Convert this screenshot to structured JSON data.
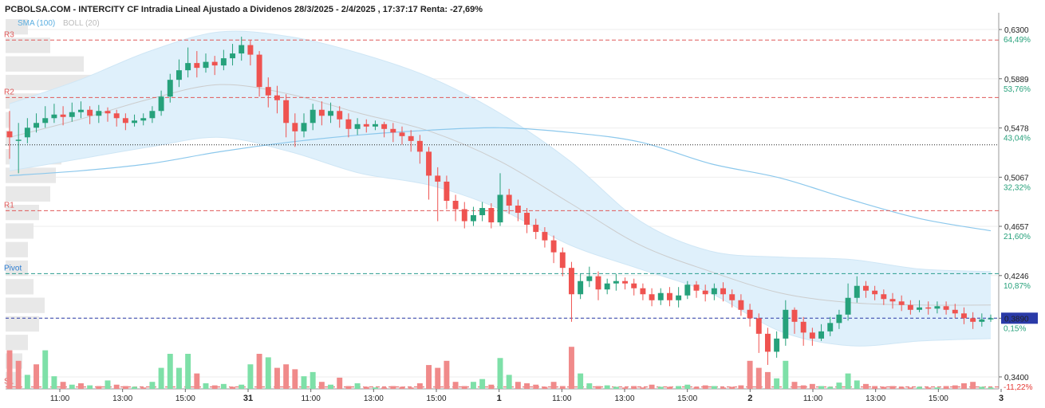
{
  "header": {
    "title": "PCBOLSA.COM - INTERCITY CF Intradia Lineal Ajustado a Dividenos 28/3/2025 - 2/4/2025 , 17:37:17 Renta: -27,69%",
    "legend_sma": "SMA (100)",
    "legend_boll": "BOLL (20)"
  },
  "colors": {
    "up": "#26a17b",
    "down": "#ef5350",
    "vol_up": "#7ee0a8",
    "vol_down": "#f08a8a",
    "band_fill": "#dff0fb",
    "sma": "#8cc8ec",
    "boll_mid": "#cccccc",
    "resistance": "#e05a5a",
    "pivot": "#2a9d8f",
    "support": "#e05a5a",
    "last_price": "#2a3aa8",
    "pct_positive": "#26a17b",
    "pct_negative": "#e53935",
    "sma_legend": "#5aaee0",
    "boll_legend": "#bbbbbb",
    "level_label": "#e05a5a",
    "pivot_label": "#2a7bd0"
  },
  "chart_data": {
    "type": "candlestick",
    "title": "PCBOLSA.COM - INTERCITY CF Intradia Lineal Ajustado a Dividenos 28/3/2025 - 2/4/2025 , 17:37:17 Renta: -27,69%",
    "ylim": [
      0.33,
      0.64
    ],
    "y_ticks": [
      {
        "value": 0.63,
        "label": "0,6300",
        "pct": "64,49%"
      },
      {
        "value": 0.5889,
        "label": "0,5889",
        "pct": "53,76%"
      },
      {
        "value": 0.5478,
        "label": "0,5478",
        "pct": "43,04%"
      },
      {
        "value": 0.5067,
        "label": "0,5067",
        "pct": "32,32%"
      },
      {
        "value": 0.4657,
        "label": "0,4657",
        "pct": "21,60%"
      },
      {
        "value": 0.4246,
        "label": "0,4246",
        "pct": "10,87%"
      },
      {
        "value": 0.389,
        "label": "0,3890",
        "pct": "0,15%"
      },
      {
        "value": 0.34,
        "label": "0,3400",
        "pct": "-11,22%"
      }
    ],
    "last_price": {
      "value": 0.389,
      "label": "0,3890"
    },
    "levels": [
      {
        "name": "R3",
        "value": 0.6212
      },
      {
        "name": "R2",
        "value": 0.5732
      },
      {
        "name": "R1",
        "value": 0.4788
      },
      {
        "name": "Pivot",
        "value": 0.4262
      },
      {
        "name": "S1",
        "value": 0.3316
      }
    ],
    "reference_price": 0.5337,
    "x_labels": [
      {
        "label": "11:00",
        "bold": false
      },
      {
        "label": "13:00",
        "bold": false
      },
      {
        "label": "15:00",
        "bold": false
      },
      {
        "label": "31",
        "bold": true
      },
      {
        "label": "11:00",
        "bold": false
      },
      {
        "label": "13:00",
        "bold": false
      },
      {
        "label": "15:00",
        "bold": false
      },
      {
        "label": "1",
        "bold": true
      },
      {
        "label": "11:00",
        "bold": false
      },
      {
        "label": "13:00",
        "bold": false
      },
      {
        "label": "15:00",
        "bold": false
      },
      {
        "label": "2",
        "bold": true
      },
      {
        "label": "11:00",
        "bold": false
      },
      {
        "label": "13:00",
        "bold": false
      },
      {
        "label": "15:00",
        "bold": false
      },
      {
        "label": "3",
        "bold": true
      }
    ],
    "candles": [
      [
        0.545,
        0.54,
        0.562,
        0.522
      ],
      [
        0.538,
        0.538,
        0.552,
        0.51
      ],
      [
        0.54,
        0.548,
        0.556,
        0.535
      ],
      [
        0.548,
        0.552,
        0.56,
        0.544
      ],
      [
        0.552,
        0.556,
        0.566,
        0.548
      ],
      [
        0.556,
        0.559,
        0.568,
        0.552
      ],
      [
        0.559,
        0.557,
        0.566,
        0.55
      ],
      [
        0.557,
        0.561,
        0.569,
        0.553
      ],
      [
        0.561,
        0.563,
        0.57,
        0.556
      ],
      [
        0.563,
        0.558,
        0.566,
        0.551
      ],
      [
        0.558,
        0.562,
        0.567,
        0.552
      ],
      [
        0.562,
        0.56,
        0.565,
        0.553
      ],
      [
        0.56,
        0.556,
        0.563,
        0.549
      ],
      [
        0.556,
        0.552,
        0.56,
        0.546
      ],
      [
        0.552,
        0.554,
        0.559,
        0.549
      ],
      [
        0.554,
        0.556,
        0.56,
        0.55
      ],
      [
        0.556,
        0.562,
        0.566,
        0.552
      ],
      [
        0.562,
        0.574,
        0.579,
        0.558
      ],
      [
        0.574,
        0.588,
        0.593,
        0.569
      ],
      [
        0.588,
        0.596,
        0.605,
        0.582
      ],
      [
        0.596,
        0.602,
        0.615,
        0.59
      ],
      [
        0.602,
        0.598,
        0.612,
        0.59
      ],
      [
        0.598,
        0.603,
        0.61,
        0.594
      ],
      [
        0.603,
        0.6,
        0.608,
        0.592
      ],
      [
        0.6,
        0.606,
        0.613,
        0.596
      ],
      [
        0.606,
        0.61,
        0.618,
        0.6
      ],
      [
        0.61,
        0.617,
        0.624,
        0.604
      ],
      [
        0.617,
        0.609,
        0.621,
        0.6
      ],
      [
        0.609,
        0.582,
        0.612,
        0.574
      ],
      [
        0.582,
        0.575,
        0.59,
        0.565
      ],
      [
        0.575,
        0.571,
        0.583,
        0.56
      ],
      [
        0.571,
        0.552,
        0.576,
        0.54
      ],
      [
        0.552,
        0.545,
        0.56,
        0.532
      ],
      [
        0.545,
        0.552,
        0.56,
        0.54
      ],
      [
        0.552,
        0.563,
        0.568,
        0.546
      ],
      [
        0.563,
        0.558,
        0.57,
        0.55
      ],
      [
        0.558,
        0.562,
        0.569,
        0.552
      ],
      [
        0.562,
        0.555,
        0.566,
        0.548
      ],
      [
        0.555,
        0.547,
        0.56,
        0.54
      ],
      [
        0.547,
        0.551,
        0.556,
        0.542
      ],
      [
        0.551,
        0.549,
        0.555,
        0.544
      ],
      [
        0.549,
        0.551,
        0.554,
        0.546
      ],
      [
        0.551,
        0.547,
        0.553,
        0.54
      ],
      [
        0.547,
        0.544,
        0.552,
        0.536
      ],
      [
        0.544,
        0.541,
        0.549,
        0.534
      ],
      [
        0.541,
        0.537,
        0.546,
        0.528
      ],
      [
        0.537,
        0.528,
        0.542,
        0.518
      ],
      [
        0.528,
        0.508,
        0.532,
        0.488
      ],
      [
        0.508,
        0.503,
        0.515,
        0.47
      ],
      [
        0.503,
        0.487,
        0.508,
        0.48
      ],
      [
        0.487,
        0.48,
        0.492,
        0.47
      ],
      [
        0.48,
        0.47,
        0.486,
        0.464
      ],
      [
        0.47,
        0.475,
        0.482,
        0.466
      ],
      [
        0.475,
        0.481,
        0.486,
        0.47
      ],
      [
        0.481,
        0.469,
        0.485,
        0.464
      ],
      [
        0.469,
        0.492,
        0.51,
        0.466
      ],
      [
        0.492,
        0.483,
        0.497,
        0.476
      ],
      [
        0.483,
        0.477,
        0.488,
        0.47
      ],
      [
        0.477,
        0.467,
        0.481,
        0.46
      ],
      [
        0.467,
        0.461,
        0.472,
        0.455
      ],
      [
        0.461,
        0.454,
        0.465,
        0.448
      ],
      [
        0.454,
        0.444,
        0.458,
        0.435
      ],
      [
        0.444,
        0.431,
        0.448,
        0.424
      ],
      [
        0.431,
        0.409,
        0.436,
        0.386
      ],
      [
        0.409,
        0.42,
        0.426,
        0.405
      ],
      [
        0.42,
        0.424,
        0.432,
        0.415
      ],
      [
        0.424,
        0.413,
        0.428,
        0.404
      ],
      [
        0.413,
        0.418,
        0.422,
        0.409
      ],
      [
        0.418,
        0.42,
        0.426,
        0.412
      ],
      [
        0.42,
        0.418,
        0.423,
        0.413
      ],
      [
        0.418,
        0.414,
        0.422,
        0.408
      ],
      [
        0.414,
        0.409,
        0.418,
        0.404
      ],
      [
        0.409,
        0.404,
        0.414,
        0.399
      ],
      [
        0.404,
        0.41,
        0.414,
        0.4
      ],
      [
        0.41,
        0.404,
        0.415,
        0.399
      ],
      [
        0.404,
        0.408,
        0.415,
        0.398
      ],
      [
        0.408,
        0.417,
        0.42,
        0.405
      ],
      [
        0.417,
        0.412,
        0.42,
        0.406
      ],
      [
        0.412,
        0.409,
        0.417,
        0.403
      ],
      [
        0.409,
        0.414,
        0.418,
        0.404
      ],
      [
        0.414,
        0.409,
        0.419,
        0.403
      ],
      [
        0.409,
        0.404,
        0.413,
        0.398
      ],
      [
        0.404,
        0.396,
        0.409,
        0.391
      ],
      [
        0.396,
        0.389,
        0.401,
        0.382
      ],
      [
        0.389,
        0.376,
        0.393,
        0.36
      ],
      [
        0.376,
        0.361,
        0.381,
        0.35
      ],
      [
        0.361,
        0.372,
        0.378,
        0.356
      ],
      [
        0.372,
        0.396,
        0.404,
        0.366
      ],
      [
        0.396,
        0.386,
        0.398,
        0.376
      ],
      [
        0.386,
        0.377,
        0.39,
        0.366
      ],
      [
        0.377,
        0.372,
        0.381,
        0.366
      ],
      [
        0.372,
        0.378,
        0.384,
        0.37
      ],
      [
        0.378,
        0.385,
        0.39,
        0.374
      ],
      [
        0.385,
        0.392,
        0.396,
        0.38
      ],
      [
        0.392,
        0.406,
        0.418,
        0.387
      ],
      [
        0.406,
        0.416,
        0.424,
        0.402
      ],
      [
        0.416,
        0.412,
        0.42,
        0.406
      ],
      [
        0.412,
        0.409,
        0.416,
        0.404
      ],
      [
        0.409,
        0.405,
        0.413,
        0.4
      ],
      [
        0.405,
        0.403,
        0.41,
        0.397
      ],
      [
        0.403,
        0.4,
        0.408,
        0.395
      ],
      [
        0.4,
        0.396,
        0.404,
        0.392
      ],
      [
        0.396,
        0.398,
        0.404,
        0.394
      ],
      [
        0.398,
        0.397,
        0.403,
        0.392
      ],
      [
        0.397,
        0.399,
        0.403,
        0.393
      ],
      [
        0.399,
        0.396,
        0.403,
        0.392
      ],
      [
        0.396,
        0.393,
        0.401,
        0.389
      ],
      [
        0.393,
        0.389,
        0.398,
        0.384
      ],
      [
        0.389,
        0.386,
        0.394,
        0.38
      ],
      [
        0.386,
        0.388,
        0.393,
        0.382
      ],
      [
        0.388,
        0.389,
        0.392,
        0.386
      ]
    ],
    "volumes": [
      [
        0.55,
        0
      ],
      [
        0.4,
        0
      ],
      [
        0.2,
        1
      ],
      [
        0.35,
        0
      ],
      [
        0.55,
        1
      ],
      [
        0.18,
        1
      ],
      [
        0.1,
        0
      ],
      [
        0.06,
        1
      ],
      [
        0.08,
        0
      ],
      [
        0.05,
        1
      ],
      [
        0.04,
        0
      ],
      [
        0.12,
        1
      ],
      [
        0.06,
        0
      ],
      [
        0.04,
        0
      ],
      [
        0.03,
        1
      ],
      [
        0.02,
        0
      ],
      [
        0.1,
        1
      ],
      [
        0.3,
        1
      ],
      [
        0.5,
        1
      ],
      [
        0.3,
        1
      ],
      [
        0.5,
        1
      ],
      [
        0.22,
        0
      ],
      [
        0.08,
        1
      ],
      [
        0.05,
        0
      ],
      [
        0.07,
        1
      ],
      [
        0.03,
        0
      ],
      [
        0.06,
        1
      ],
      [
        0.35,
        1
      ],
      [
        0.5,
        0
      ],
      [
        0.45,
        1
      ],
      [
        0.3,
        0
      ],
      [
        0.35,
        0
      ],
      [
        0.28,
        0
      ],
      [
        0.18,
        1
      ],
      [
        0.24,
        1
      ],
      [
        0.1,
        0
      ],
      [
        0.06,
        1
      ],
      [
        0.16,
        0
      ],
      [
        0.04,
        0
      ],
      [
        0.08,
        1
      ],
      [
        0.03,
        0
      ],
      [
        0.02,
        1
      ],
      [
        0.02,
        0
      ],
      [
        0.04,
        0
      ],
      [
        0.03,
        0
      ],
      [
        0.02,
        0
      ],
      [
        0.08,
        0
      ],
      [
        0.34,
        0
      ],
      [
        0.3,
        0
      ],
      [
        0.4,
        0
      ],
      [
        0.1,
        0
      ],
      [
        0.04,
        0
      ],
      [
        0.1,
        1
      ],
      [
        0.14,
        1
      ],
      [
        0.06,
        0
      ],
      [
        0.44,
        1
      ],
      [
        0.2,
        1
      ],
      [
        0.1,
        0
      ],
      [
        0.08,
        0
      ],
      [
        0.06,
        0
      ],
      [
        0.03,
        0
      ],
      [
        0.1,
        0
      ],
      [
        0.04,
        0
      ],
      [
        0.6,
        0
      ],
      [
        0.22,
        1
      ],
      [
        0.08,
        1
      ],
      [
        0.04,
        0
      ],
      [
        0.05,
        1
      ],
      [
        0.03,
        1
      ],
      [
        0.02,
        0
      ],
      [
        0.04,
        0
      ],
      [
        0.02,
        0
      ],
      [
        0.06,
        0
      ],
      [
        0.03,
        1
      ],
      [
        0.03,
        0
      ],
      [
        0.04,
        1
      ],
      [
        0.06,
        1
      ],
      [
        0.03,
        0
      ],
      [
        0.05,
        0
      ],
      [
        0.04,
        1
      ],
      [
        0.02,
        0
      ],
      [
        0.03,
        0
      ],
      [
        0.05,
        0
      ],
      [
        0.4,
        0
      ],
      [
        0.3,
        0
      ],
      [
        0.24,
        0
      ],
      [
        0.15,
        1
      ],
      [
        0.4,
        1
      ],
      [
        0.1,
        0
      ],
      [
        0.05,
        0
      ],
      [
        0.07,
        0
      ],
      [
        0.04,
        1
      ],
      [
        0.03,
        1
      ],
      [
        0.09,
        1
      ],
      [
        0.22,
        1
      ],
      [
        0.12,
        1
      ],
      [
        0.07,
        0
      ],
      [
        0.04,
        0
      ],
      [
        0.03,
        0
      ],
      [
        0.04,
        0
      ],
      [
        0.03,
        0
      ],
      [
        0.02,
        0
      ],
      [
        0.03,
        1
      ],
      [
        0.02,
        0
      ],
      [
        0.02,
        1
      ],
      [
        0.04,
        0
      ],
      [
        0.05,
        0
      ],
      [
        0.08,
        0
      ],
      [
        0.1,
        0
      ],
      [
        0.03,
        1
      ],
      [
        0.02,
        1
      ]
    ],
    "sma100": [
      0.508,
      0.512,
      0.518,
      0.528,
      0.536,
      0.542,
      0.546,
      0.548,
      0.544,
      0.536,
      0.518,
      0.506,
      0.488,
      0.472,
      0.462
    ],
    "boll_upper": [
      0.568,
      0.588,
      0.612,
      0.628,
      0.624,
      0.61,
      0.59,
      0.56,
      0.52,
      0.47,
      0.445,
      0.44,
      0.438,
      0.43,
      0.428
    ],
    "boll_mid": [
      0.54,
      0.555,
      0.572,
      0.584,
      0.576,
      0.56,
      0.545,
      0.52,
      0.485,
      0.45,
      0.428,
      0.41,
      0.402,
      0.4,
      0.4
    ],
    "boll_lower": [
      0.512,
      0.522,
      0.532,
      0.54,
      0.528,
      0.51,
      0.5,
      0.48,
      0.45,
      0.43,
      0.41,
      0.378,
      0.366,
      0.37,
      0.372
    ],
    "volume_profile": [
      0.04,
      0.08,
      0.14,
      0.18,
      0.16,
      0.14,
      0.12,
      0.1,
      0.09,
      0.08,
      0.06,
      0.05,
      0.04,
      0.04,
      0.05,
      0.07,
      0.06,
      0.04,
      0.03,
      0.02
    ]
  }
}
